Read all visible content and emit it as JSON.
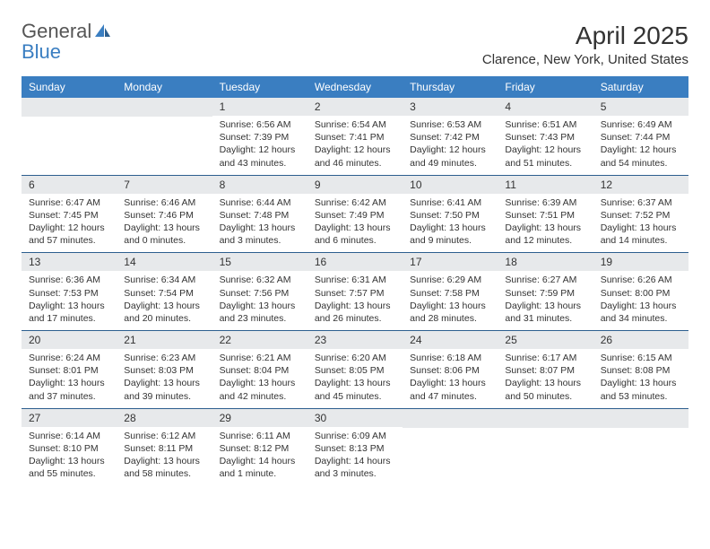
{
  "brand": {
    "name1": "General",
    "name2": "Blue"
  },
  "title": "April 2025",
  "location": "Clarence, New York, United States",
  "weekdays": [
    "Sunday",
    "Monday",
    "Tuesday",
    "Wednesday",
    "Thursday",
    "Friday",
    "Saturday"
  ],
  "colors": {
    "header_bg": "#3a7ec1",
    "header_text": "#ffffff",
    "daynum_bg": "#e7e9eb",
    "rule": "#2d5f8f",
    "text": "#333333",
    "logo_gray": "#555555",
    "logo_blue": "#3a7ec1",
    "background": "#ffffff"
  },
  "fonts": {
    "title_size_pt": 21,
    "location_size_pt": 11,
    "weekday_size_pt": 9,
    "day_size_pt": 9,
    "detail_size_pt": 8
  },
  "weeks": [
    [
      {
        "day": ""
      },
      {
        "day": ""
      },
      {
        "day": "1",
        "sunrise": "Sunrise: 6:56 AM",
        "sunset": "Sunset: 7:39 PM",
        "daylight": "Daylight: 12 hours and 43 minutes."
      },
      {
        "day": "2",
        "sunrise": "Sunrise: 6:54 AM",
        "sunset": "Sunset: 7:41 PM",
        "daylight": "Daylight: 12 hours and 46 minutes."
      },
      {
        "day": "3",
        "sunrise": "Sunrise: 6:53 AM",
        "sunset": "Sunset: 7:42 PM",
        "daylight": "Daylight: 12 hours and 49 minutes."
      },
      {
        "day": "4",
        "sunrise": "Sunrise: 6:51 AM",
        "sunset": "Sunset: 7:43 PM",
        "daylight": "Daylight: 12 hours and 51 minutes."
      },
      {
        "day": "5",
        "sunrise": "Sunrise: 6:49 AM",
        "sunset": "Sunset: 7:44 PM",
        "daylight": "Daylight: 12 hours and 54 minutes."
      }
    ],
    [
      {
        "day": "6",
        "sunrise": "Sunrise: 6:47 AM",
        "sunset": "Sunset: 7:45 PM",
        "daylight": "Daylight: 12 hours and 57 minutes."
      },
      {
        "day": "7",
        "sunrise": "Sunrise: 6:46 AM",
        "sunset": "Sunset: 7:46 PM",
        "daylight": "Daylight: 13 hours and 0 minutes."
      },
      {
        "day": "8",
        "sunrise": "Sunrise: 6:44 AM",
        "sunset": "Sunset: 7:48 PM",
        "daylight": "Daylight: 13 hours and 3 minutes."
      },
      {
        "day": "9",
        "sunrise": "Sunrise: 6:42 AM",
        "sunset": "Sunset: 7:49 PM",
        "daylight": "Daylight: 13 hours and 6 minutes."
      },
      {
        "day": "10",
        "sunrise": "Sunrise: 6:41 AM",
        "sunset": "Sunset: 7:50 PM",
        "daylight": "Daylight: 13 hours and 9 minutes."
      },
      {
        "day": "11",
        "sunrise": "Sunrise: 6:39 AM",
        "sunset": "Sunset: 7:51 PM",
        "daylight": "Daylight: 13 hours and 12 minutes."
      },
      {
        "day": "12",
        "sunrise": "Sunrise: 6:37 AM",
        "sunset": "Sunset: 7:52 PM",
        "daylight": "Daylight: 13 hours and 14 minutes."
      }
    ],
    [
      {
        "day": "13",
        "sunrise": "Sunrise: 6:36 AM",
        "sunset": "Sunset: 7:53 PM",
        "daylight": "Daylight: 13 hours and 17 minutes."
      },
      {
        "day": "14",
        "sunrise": "Sunrise: 6:34 AM",
        "sunset": "Sunset: 7:54 PM",
        "daylight": "Daylight: 13 hours and 20 minutes."
      },
      {
        "day": "15",
        "sunrise": "Sunrise: 6:32 AM",
        "sunset": "Sunset: 7:56 PM",
        "daylight": "Daylight: 13 hours and 23 minutes."
      },
      {
        "day": "16",
        "sunrise": "Sunrise: 6:31 AM",
        "sunset": "Sunset: 7:57 PM",
        "daylight": "Daylight: 13 hours and 26 minutes."
      },
      {
        "day": "17",
        "sunrise": "Sunrise: 6:29 AM",
        "sunset": "Sunset: 7:58 PM",
        "daylight": "Daylight: 13 hours and 28 minutes."
      },
      {
        "day": "18",
        "sunrise": "Sunrise: 6:27 AM",
        "sunset": "Sunset: 7:59 PM",
        "daylight": "Daylight: 13 hours and 31 minutes."
      },
      {
        "day": "19",
        "sunrise": "Sunrise: 6:26 AM",
        "sunset": "Sunset: 8:00 PM",
        "daylight": "Daylight: 13 hours and 34 minutes."
      }
    ],
    [
      {
        "day": "20",
        "sunrise": "Sunrise: 6:24 AM",
        "sunset": "Sunset: 8:01 PM",
        "daylight": "Daylight: 13 hours and 37 minutes."
      },
      {
        "day": "21",
        "sunrise": "Sunrise: 6:23 AM",
        "sunset": "Sunset: 8:03 PM",
        "daylight": "Daylight: 13 hours and 39 minutes."
      },
      {
        "day": "22",
        "sunrise": "Sunrise: 6:21 AM",
        "sunset": "Sunset: 8:04 PM",
        "daylight": "Daylight: 13 hours and 42 minutes."
      },
      {
        "day": "23",
        "sunrise": "Sunrise: 6:20 AM",
        "sunset": "Sunset: 8:05 PM",
        "daylight": "Daylight: 13 hours and 45 minutes."
      },
      {
        "day": "24",
        "sunrise": "Sunrise: 6:18 AM",
        "sunset": "Sunset: 8:06 PM",
        "daylight": "Daylight: 13 hours and 47 minutes."
      },
      {
        "day": "25",
        "sunrise": "Sunrise: 6:17 AM",
        "sunset": "Sunset: 8:07 PM",
        "daylight": "Daylight: 13 hours and 50 minutes."
      },
      {
        "day": "26",
        "sunrise": "Sunrise: 6:15 AM",
        "sunset": "Sunset: 8:08 PM",
        "daylight": "Daylight: 13 hours and 53 minutes."
      }
    ],
    [
      {
        "day": "27",
        "sunrise": "Sunrise: 6:14 AM",
        "sunset": "Sunset: 8:10 PM",
        "daylight": "Daylight: 13 hours and 55 minutes."
      },
      {
        "day": "28",
        "sunrise": "Sunrise: 6:12 AM",
        "sunset": "Sunset: 8:11 PM",
        "daylight": "Daylight: 13 hours and 58 minutes."
      },
      {
        "day": "29",
        "sunrise": "Sunrise: 6:11 AM",
        "sunset": "Sunset: 8:12 PM",
        "daylight": "Daylight: 14 hours and 1 minute."
      },
      {
        "day": "30",
        "sunrise": "Sunrise: 6:09 AM",
        "sunset": "Sunset: 8:13 PM",
        "daylight": "Daylight: 14 hours and 3 minutes."
      },
      {
        "day": ""
      },
      {
        "day": ""
      },
      {
        "day": ""
      }
    ]
  ]
}
